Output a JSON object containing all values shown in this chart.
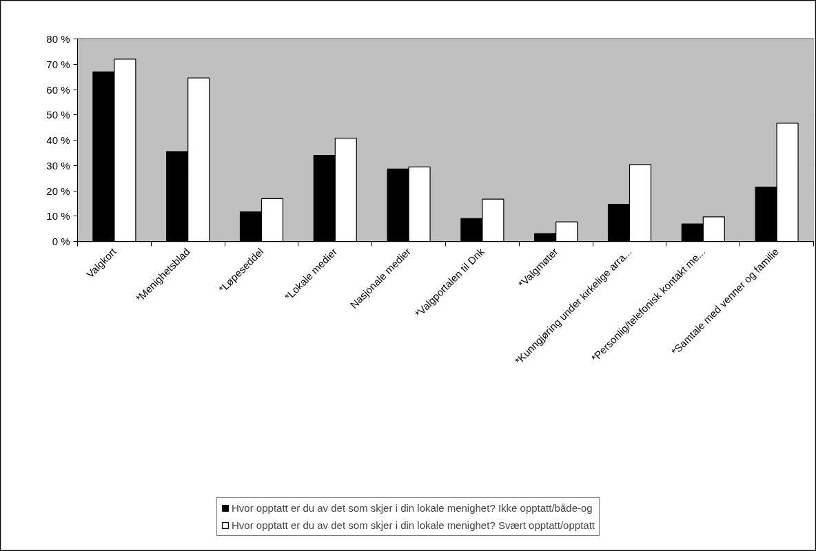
{
  "chart_data": {
    "type": "bar",
    "categories": [
      "Valgkort",
      "*Menighetsblad",
      "*Løpeseddel",
      "*Lokale medier",
      "Nasjonale medier",
      "*Valgportalen til Dnk",
      "*Valgmøter",
      "*Kunngjøring under kirkelige arra...",
      "*Personlig/telefonisk kontakt me...",
      "*Samtale med venner og familie"
    ],
    "series": [
      {
        "name": "Hvor opptatt er du av det som skjer i din lokale menighet? Ikke opptatt/både-og",
        "color": "#000000",
        "values": [
          67,
          35.5,
          11.7,
          34,
          28.6,
          9,
          3.1,
          14.7,
          6.9,
          21.5
        ]
      },
      {
        "name": "Hvor opptatt er du av det som skjer i din lokale menighet? Svært opptatt/opptatt",
        "color": "#ffffff",
        "values": [
          72,
          64.6,
          16.9,
          40.8,
          29.4,
          16.7,
          7.7,
          30.4,
          9.7,
          46.7
        ]
      }
    ],
    "ylim": [
      0,
      80
    ],
    "yticks": [
      {
        "value": 0,
        "label": "0 %"
      },
      {
        "value": 10,
        "label": "10 %"
      },
      {
        "value": 20,
        "label": "20 %"
      },
      {
        "value": 30,
        "label": "30 %"
      },
      {
        "value": 40,
        "label": "40 %"
      },
      {
        "value": 50,
        "label": "50 %"
      },
      {
        "value": 60,
        "label": "60 %"
      },
      {
        "value": 70,
        "label": "70 %"
      },
      {
        "value": 80,
        "label": "80 %"
      }
    ],
    "grid": "y",
    "legend": "bottom"
  }
}
